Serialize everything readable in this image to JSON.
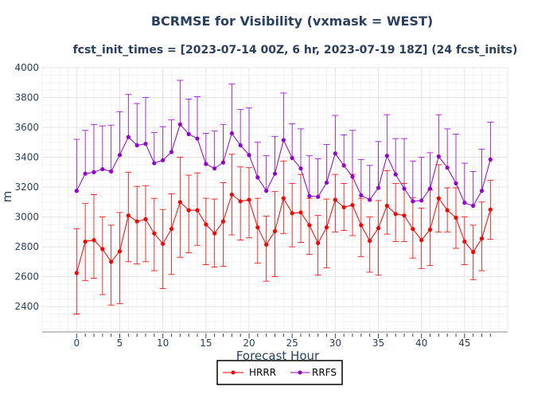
{
  "chart_data": {
    "type": "line",
    "title": "BCRMSE for Visibility (vxmask = WEST)",
    "subtitle": "fcst_init_times = [2023-07-14 00Z, 6 hr, 2023-07-19 18Z] (24 fcst_inits)",
    "xlabel": "Forecast Hour",
    "ylabel": "m",
    "xlim": [
      -4,
      50
    ],
    "ylim": [
      2230,
      4000
    ],
    "x_ticks": [
      0,
      5,
      10,
      15,
      20,
      25,
      30,
      35,
      40,
      45
    ],
    "y_ticks": [
      2400,
      2600,
      2800,
      3000,
      3200,
      3400,
      3600,
      3800,
      4000
    ],
    "grid": true,
    "legend_position": "bottom-center",
    "x": [
      0,
      1,
      2,
      3,
      4,
      5,
      6,
      7,
      8,
      9,
      10,
      11,
      12,
      13,
      14,
      15,
      16,
      17,
      18,
      19,
      20,
      21,
      22,
      23,
      24,
      25,
      26,
      27,
      28,
      29,
      30,
      31,
      32,
      33,
      34,
      35,
      36,
      37,
      38,
      39,
      40,
      41,
      42,
      43,
      44,
      45,
      46,
      47,
      48
    ],
    "series": [
      {
        "name": "HRRR",
        "color": "#ff0000",
        "values": [
          2625,
          2835,
          2845,
          2785,
          2700,
          2770,
          3010,
          2970,
          2985,
          2890,
          2820,
          2920,
          3100,
          3045,
          3045,
          2950,
          2890,
          2970,
          3150,
          3105,
          3115,
          2930,
          2815,
          2905,
          3125,
          3025,
          3030,
          2945,
          2825,
          2930,
          3115,
          3065,
          3080,
          2945,
          2840,
          2925,
          3075,
          3020,
          3010,
          2920,
          2845,
          2915,
          3125,
          3045,
          2995,
          2835,
          2765,
          2855,
          3050
        ],
        "upper": [
          2920,
          3090,
          3150,
          3000,
          2945,
          3030,
          3300,
          3205,
          3210,
          3125,
          3050,
          3155,
          3400,
          3280,
          3295,
          3125,
          3120,
          3230,
          3420,
          3335,
          3330,
          3125,
          3005,
          3170,
          3375,
          3225,
          3285,
          3125,
          3010,
          3120,
          3285,
          3225,
          3285,
          3125,
          3000,
          3110,
          3310,
          3225,
          3225,
          3130,
          3060,
          3180,
          3350,
          3195,
          3195,
          3000,
          2945,
          3100,
          3245
        ],
        "lower": [
          2350,
          2575,
          2590,
          2480,
          2410,
          2420,
          2700,
          2685,
          2700,
          2640,
          2520,
          2615,
          2730,
          2760,
          2810,
          2680,
          2665,
          2670,
          2880,
          2845,
          2860,
          2690,
          2570,
          2600,
          2890,
          2800,
          2830,
          2750,
          2610,
          2660,
          2900,
          2910,
          2875,
          2735,
          2630,
          2610,
          2885,
          2835,
          2835,
          2725,
          2655,
          2675,
          2900,
          2900,
          2790,
          2680,
          2580,
          2640,
          2850
        ]
      },
      {
        "name": "RRFS",
        "color": "#9400d3",
        "values": [
          3175,
          3290,
          3300,
          3320,
          3305,
          3415,
          3535,
          3480,
          3490,
          3360,
          3380,
          3435,
          3620,
          3555,
          3525,
          3355,
          3325,
          3365,
          3560,
          3480,
          3415,
          3265,
          3175,
          3290,
          3515,
          3395,
          3325,
          3140,
          3135,
          3230,
          3425,
          3345,
          3270,
          3145,
          3115,
          3195,
          3410,
          3285,
          3190,
          3105,
          3110,
          3190,
          3405,
          3330,
          3225,
          3095,
          3075,
          3175,
          3385
        ],
        "upper": [
          3520,
          3580,
          3620,
          3610,
          3615,
          3705,
          3820,
          3760,
          3800,
          3565,
          3605,
          3650,
          3915,
          3790,
          3805,
          3560,
          3575,
          3620,
          3890,
          3720,
          3730,
          3500,
          3410,
          3540,
          3830,
          3625,
          3590,
          3410,
          3390,
          3485,
          3680,
          3550,
          3580,
          3385,
          3345,
          3505,
          3685,
          3525,
          3525,
          3375,
          3400,
          3430,
          3685,
          3590,
          3555,
          3360,
          3305,
          3455,
          3635
        ]
      }
    ]
  },
  "legend": {
    "items": [
      {
        "label": "HRRR",
        "color": "#ff0000"
      },
      {
        "label": "RRFS",
        "color": "#9400d3"
      }
    ]
  }
}
